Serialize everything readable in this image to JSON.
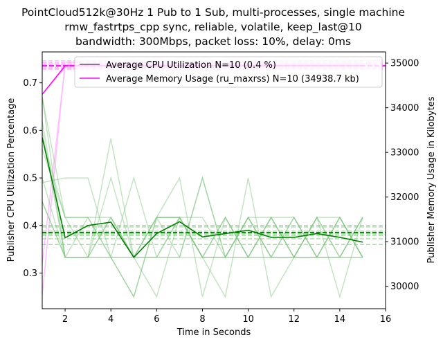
{
  "chart_data": {
    "type": "line",
    "title": [
      "PointCloud512k@30Hz 1 Pub to 1 Sub, multi-processes, single machine",
      "rmw_fastrtps_cpp sync, reliable, volatile, keep_last@10",
      "bandwidth: 300Mbps, packet loss: 10%, delay: 0ms"
    ],
    "xlabel": "Time in Seconds",
    "ylabel_left": "Publisher CPU Utilization Percentage",
    "ylabel_right": "Publisher Memory Usage in Kilobytes",
    "xlim": [
      1,
      16
    ],
    "ylim_left": [
      0.225,
      0.765
    ],
    "ylim_right": [
      29500,
      35250
    ],
    "x_ticks": [
      "2",
      "4",
      "6",
      "8",
      "10",
      "12",
      "14",
      "16"
    ],
    "y_left_ticks": [
      "0.3",
      "0.4",
      "0.5",
      "0.6",
      "0.7"
    ],
    "y_right_ticks": [
      "30000",
      "31000",
      "32000",
      "33000",
      "34000",
      "35000"
    ],
    "legend": [
      {
        "label": "Average CPU Utilization N=10 (0.4 %)",
        "color": "#555555"
      },
      {
        "label": "Average Memory Usage (ru_maxrss) N=10 (34938.7 kb)",
        "color": "#ff00ff"
      }
    ],
    "colors": {
      "cpu_individual": "#7dc47d",
      "cpu_mean": "#008000",
      "mem_individual": "#ffb3ff",
      "mem_mean": "#ff00ff"
    },
    "x": [
      1,
      2,
      3,
      4,
      5,
      6,
      7,
      8,
      9,
      10,
      11,
      12,
      13,
      14,
      15
    ],
    "cpu_series": [
      [
        0.67,
        0.333,
        0.333,
        0.417,
        0.333,
        0.333,
        0.417,
        0.333,
        0.333,
        0.417,
        0.333,
        0.417,
        0.333,
        0.417,
        0.333
      ],
      [
        0.583,
        0.417,
        0.333,
        0.333,
        0.333,
        0.417,
        0.417,
        0.333,
        0.417,
        0.333,
        0.417,
        0.333,
        0.417,
        0.333,
        0.417
      ],
      [
        0.56,
        0.417,
        0.417,
        0.333,
        0.333,
        0.417,
        0.417,
        0.333,
        0.333,
        0.417,
        0.333,
        0.333,
        0.417,
        0.333,
        0.333
      ],
      [
        0.6,
        0.333,
        0.417,
        0.417,
        0.333,
        0.333,
        0.417,
        0.417,
        0.333,
        0.417,
        0.333,
        0.333,
        0.333,
        0.417,
        0.333
      ],
      [
        0.5,
        0.333,
        0.333,
        0.417,
        0.333,
        0.417,
        0.333,
        0.333,
        0.417,
        0.333,
        0.417,
        0.417,
        0.333,
        0.333,
        0.417
      ],
      [
        0.49,
        0.5,
        0.5,
        0.333,
        0.5,
        0.333,
        0.333,
        0.5,
        0.333,
        0.333,
        0.333,
        0.417,
        0.333,
        0.333,
        0.333
      ],
      [
        0.45,
        0.333,
        0.333,
        0.333,
        0.25,
        0.417,
        0.5,
        0.25,
        0.417,
        0.333,
        0.333,
        0.333,
        0.417,
        0.417,
        0.333
      ],
      [
        0.45,
        0.333,
        0.333,
        0.5,
        0.333,
        0.333,
        0.333,
        0.5,
        0.333,
        0.417,
        0.417,
        0.333,
        0.417,
        0.25,
        0.417
      ],
      [
        0.62,
        0.333,
        0.333,
        0.583,
        0.333,
        0.25,
        0.417,
        0.333,
        0.25,
        0.5,
        0.25,
        0.333,
        0.333,
        0.417,
        0.333
      ],
      [
        0.67,
        0.417,
        0.417,
        0.333,
        0.25,
        0.417,
        0.417,
        0.333,
        0.333,
        0.333,
        0.417,
        0.333,
        0.333,
        0.333,
        0.417
      ]
    ],
    "cpu_mean": [
      0.585,
      0.374,
      0.4,
      0.407,
      0.333,
      0.383,
      0.408,
      0.376,
      0.383,
      0.39,
      0.375,
      0.375,
      0.383,
      0.375,
      0.365
    ],
    "cpu_hlines": [
      0.385,
      0.388,
      0.382,
      0.4,
      0.397,
      0.379,
      0.36,
      0.372
    ],
    "cpu_avg_line": 0.385,
    "mem_series": [
      [
        34300,
        34900,
        34900,
        34900,
        34900,
        34900,
        34900,
        34900,
        34900,
        34900,
        34900,
        34900,
        34900,
        34900,
        34900
      ],
      [
        29800,
        35020,
        35020,
        35020,
        35020,
        35020,
        35020,
        35020,
        35020,
        35020,
        35020,
        35020,
        35020,
        35020,
        35020
      ],
      [
        30500,
        34960,
        34960,
        34960,
        34960,
        34960,
        34960,
        34960,
        34960,
        34960,
        34960,
        34960,
        34960,
        34960,
        34960
      ]
    ],
    "mem_mean": [
      34300,
      34940,
      34940,
      34940,
      34940,
      34940,
      34940,
      34940,
      34940,
      34940,
      34940,
      34940,
      34940,
      34940,
      34940
    ],
    "mem_hlines": [
      35050,
      35010,
      34980,
      34960,
      34930,
      34900,
      34880,
      34860
    ],
    "mem_avg_line": 34938.7
  }
}
